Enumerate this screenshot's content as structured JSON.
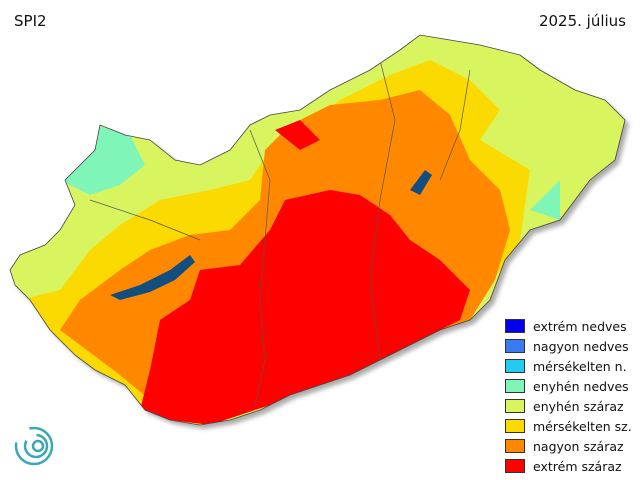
{
  "title": "SPI2",
  "date": "2025. július",
  "legend": [
    {
      "label": "extrém nedves",
      "color": "#0000ee"
    },
    {
      "label": "nagyon nedves",
      "color": "#3a7bf0"
    },
    {
      "label": "mérsékelten n.",
      "color": "#22ccf0"
    },
    {
      "label": "enyhén nedves",
      "color": "#80f5b8"
    },
    {
      "label": "enyhén száraz",
      "color": "#d8f560"
    },
    {
      "label": "mérsékelten sz.",
      "color": "#fada00"
    },
    {
      "label": "nagyon száraz",
      "color": "#ff8800"
    },
    {
      "label": "extrém száraz",
      "color": "#ff0000"
    }
  ],
  "lake_color": "#124e80"
}
